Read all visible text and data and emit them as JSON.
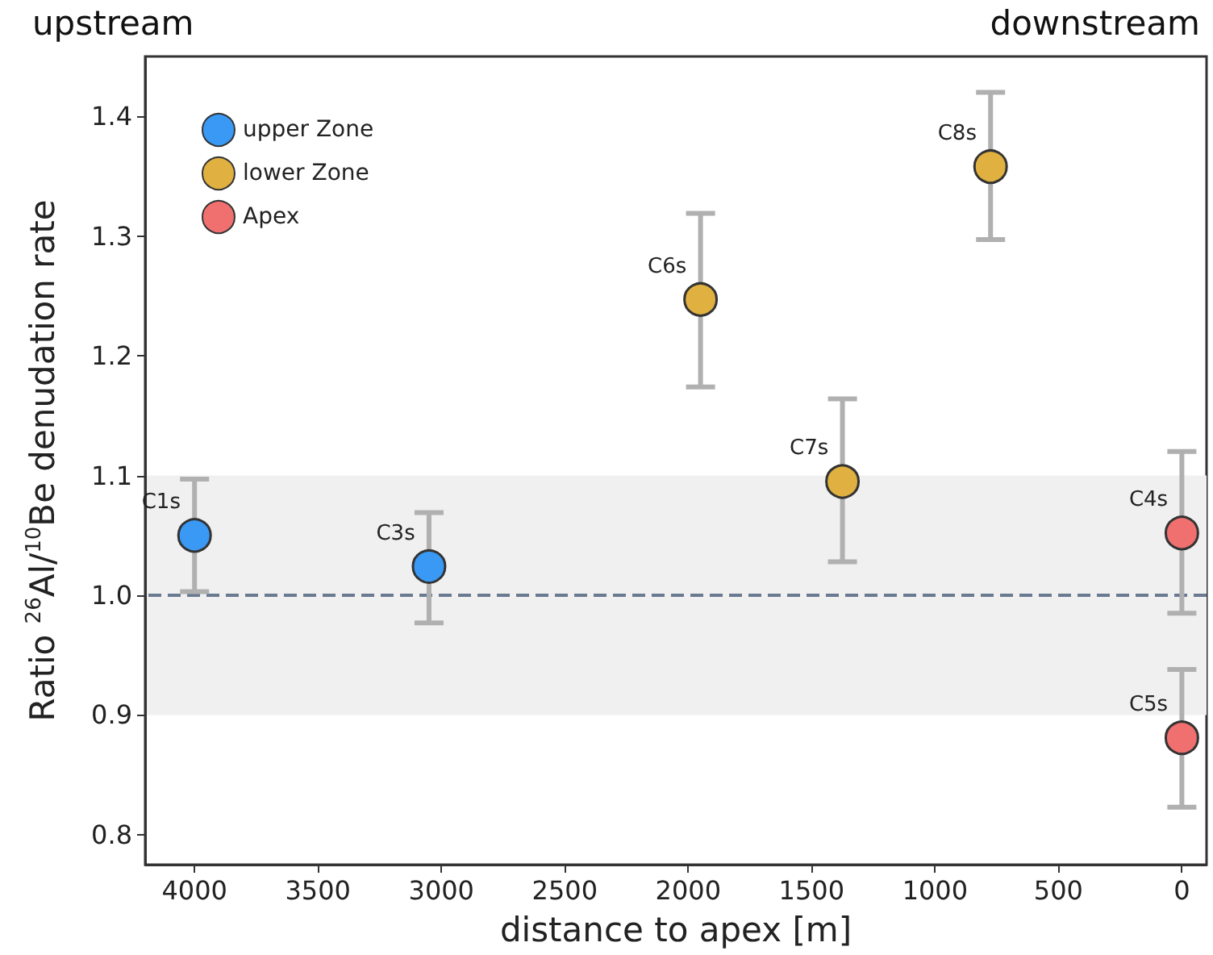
{
  "chart_data": {
    "type": "scatter",
    "xlabel": "distance to apex [m]",
    "ylabel": "Ratio $^{26}$Al/$^{10}$Be denudation rate",
    "annotations": [
      "upstream",
      "downstream"
    ],
    "xlim": [
      4200,
      -100
    ],
    "xticks": [
      4000,
      3500,
      3000,
      2500,
      2000,
      1500,
      1000,
      500,
      0
    ],
    "ylim": [
      0.775,
      1.45
    ],
    "yticks": [
      {
        "value": 0.8,
        "label": "0.8"
      },
      {
        "value": 0.9,
        "label": "0.9"
      },
      {
        "value": 1,
        "label": "1.0"
      },
      {
        "value": 1.1,
        "label": "1.1"
      },
      {
        "value": 1.2,
        "label": "1.2"
      },
      {
        "value": 1.3,
        "label": "1.3"
      },
      {
        "value": 1.4,
        "label": "1.4"
      }
    ],
    "series": [
      {
        "name": "upper Zone",
        "color": "#3a99f5",
        "x": [
          4000,
          3050
        ],
        "values": [
          1.05,
          1.024
        ],
        "errors": [
          [
            1.003,
            1.097
          ],
          [
            0.977,
            1.069
          ]
        ],
        "value_labels": [
          "C1s",
          "C3s"
        ]
      },
      {
        "name": "lower Zone",
        "color": "#e0b040",
        "x": [
          1950,
          1375,
          775
        ],
        "values": [
          1.247,
          1.095,
          1.358
        ],
        "errors": [
          [
            1.174,
            1.319
          ],
          [
            1.028,
            1.164
          ],
          [
            1.297,
            1.42
          ]
        ],
        "value_labels": [
          "C6s",
          "C7s",
          "C8s"
        ]
      },
      {
        "name": "Apex",
        "color": "#f07070",
        "x": [
          0,
          0
        ],
        "values": [
          1.052,
          0.881
        ],
        "errors": [
          [
            0.985,
            1.12
          ],
          [
            0.823,
            0.938
          ]
        ],
        "value_labels": [
          "C4s",
          "C5s"
        ]
      }
    ],
    "ref_lines": [
      {
        "axis": "y",
        "value": 1,
        "color": "#6a7a90",
        "line_style": "dashed"
      }
    ],
    "bands": [
      {
        "axis": "y",
        "from": 0.9,
        "to": 1.1,
        "color": "#f0f0f0"
      }
    ],
    "legend": "top left",
    "marker": "circle",
    "grid": false
  }
}
